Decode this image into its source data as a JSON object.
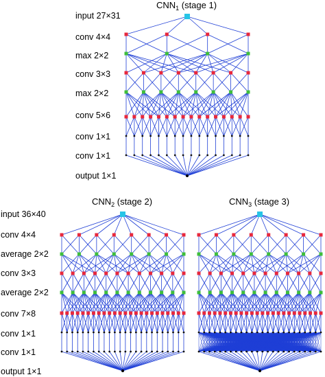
{
  "colors": {
    "edge": "#1f3fd6",
    "input_node": "#27c4e6",
    "conv_node": "#e8283c",
    "pool_node": "#3fbf3a",
    "small_node": "#111111",
    "output_node": "#000000"
  },
  "networks": [
    {
      "id": "cnn1",
      "title_main": "CNN",
      "title_sub": "1",
      "title_suffix": " (stage 1)",
      "layers": [
        {
          "label": "input 27×31",
          "count": 1,
          "kind": "input"
        },
        {
          "label": "conv 4×4",
          "count": 4,
          "kind": "conv"
        },
        {
          "label": "max 2×2",
          "count": 4,
          "kind": "pool"
        },
        {
          "label": "conv 3×3",
          "count": 8,
          "kind": "conv"
        },
        {
          "label": "max 2×2",
          "count": 8,
          "kind": "pool"
        },
        {
          "label": "conv 5×6",
          "count": 16,
          "kind": "conv"
        },
        {
          "label": "conv 1×1",
          "count": 16,
          "kind": "small"
        },
        {
          "label": "conv 1×1",
          "count": 16,
          "kind": "small"
        },
        {
          "label": "output 1×1",
          "count": 1,
          "kind": "output"
        }
      ]
    },
    {
      "id": "cnn2",
      "title_main": "CNN",
      "title_sub": "2",
      "title_suffix": " (stage 2)",
      "layers": [
        {
          "label": "input 36×40",
          "count": 1,
          "kind": "input"
        },
        {
          "label": "conv 4×4",
          "count": 8,
          "kind": "conv"
        },
        {
          "label": "average 2×2",
          "count": 8,
          "kind": "pool"
        },
        {
          "label": "conv 3×3",
          "count": 12,
          "kind": "conv"
        },
        {
          "label": "average 2×2",
          "count": 12,
          "kind": "pool"
        },
        {
          "label": "conv 7×8",
          "count": 24,
          "kind": "conv"
        },
        {
          "label": "conv 1×1",
          "count": 24,
          "kind": "small"
        },
        {
          "label": "conv 1×1",
          "count": 24,
          "kind": "small"
        },
        {
          "label": "output 1×1",
          "count": 1,
          "kind": "output"
        }
      ]
    },
    {
      "id": "cnn3",
      "title_main": "CNN",
      "title_sub": "3",
      "title_suffix": " (stage 3)",
      "layers": [
        {
          "label": "",
          "count": 1,
          "kind": "input"
        },
        {
          "label": "",
          "count": 8,
          "kind": "conv"
        },
        {
          "label": "",
          "count": 8,
          "kind": "pool"
        },
        {
          "label": "",
          "count": 12,
          "kind": "conv"
        },
        {
          "label": "",
          "count": 12,
          "kind": "pool"
        },
        {
          "label": "",
          "count": 24,
          "kind": "conv"
        },
        {
          "label": "",
          "count": 24,
          "kind": "small"
        },
        {
          "label": "",
          "count": 24,
          "kind": "small"
        },
        {
          "label": "",
          "count": 1,
          "kind": "output"
        }
      ]
    }
  ]
}
